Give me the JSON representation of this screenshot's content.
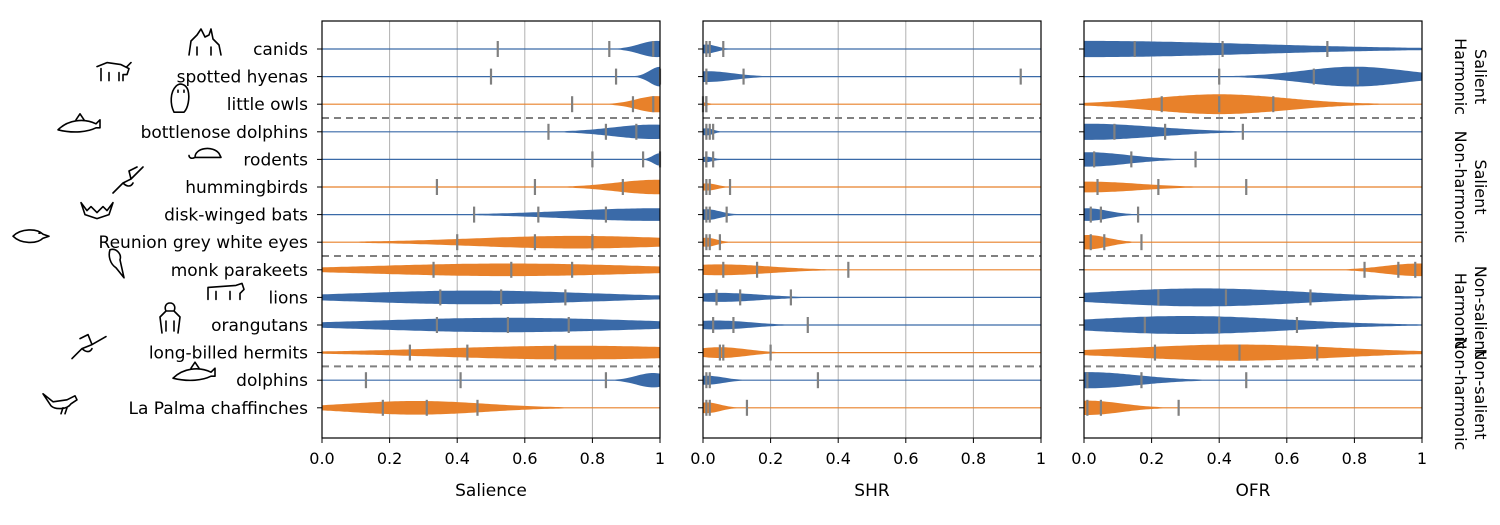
{
  "chart_data": {
    "type": "violin",
    "species": [
      "canids",
      "spotted hyenas",
      "little owls",
      "bottlenose dolphins",
      "rodents",
      "hummingbirds",
      "disk-winged bats",
      "Reunion grey white eyes",
      "monk parakeets",
      "lions",
      "orangutans",
      "long-billed hermits",
      "dolphins",
      "La Palma chaffinches"
    ],
    "species_icons": [
      "wolf-icon",
      "hyena-icon",
      "owl-icon",
      "dolphin-icon",
      "rodent-icon",
      "hummingbird-icon",
      "bat-icon",
      "white-eye-bird-icon",
      "parakeet-icon",
      "lion-icon",
      "orangutan-icon",
      "hermit-hummingbird-icon",
      "dolphin-icon",
      "chaffinch-icon"
    ],
    "colors": [
      "#3a6aa8",
      "#3a6aa8",
      "#e8812a",
      "#3a6aa8",
      "#3a6aa8",
      "#e8812a",
      "#3a6aa8",
      "#e8812a",
      "#e8812a",
      "#3a6aa8",
      "#3a6aa8",
      "#e8812a",
      "#3a6aa8",
      "#e8812a"
    ],
    "group_separators_after_index": [
      2,
      7,
      11
    ],
    "group_labels": [
      [
        "Salient",
        "Harmonic"
      ],
      [
        "Salient",
        "Non-harmonic"
      ],
      [
        "Non-salient",
        "Harmonic"
      ],
      [
        "Non-salient",
        "Non-harmonic"
      ]
    ],
    "group_spans": [
      [
        0,
        2
      ],
      [
        3,
        7
      ],
      [
        8,
        11
      ],
      [
        12,
        13
      ]
    ],
    "xticks": [
      "0.0",
      "0.2",
      "0.4",
      "0.6",
      "0.8",
      "1"
    ],
    "xlim": [
      0,
      1
    ],
    "grid": true,
    "panels": [
      {
        "xlabel": "Salience",
        "quartiles": [
          [
            0.52,
            0.85,
            0.98
          ],
          [
            0.5,
            0.87,
            1.0
          ],
          [
            0.74,
            0.92,
            0.98
          ],
          [
            0.67,
            0.84,
            0.93
          ],
          [
            0.8,
            0.95,
            1.0
          ],
          [
            0.34,
            0.63,
            0.89
          ],
          [
            0.45,
            0.64,
            0.84
          ],
          [
            0.4,
            0.63,
            0.8
          ],
          [
            0.33,
            0.56,
            0.74
          ],
          [
            0.35,
            0.53,
            0.72
          ],
          [
            0.34,
            0.55,
            0.73
          ],
          [
            0.26,
            0.43,
            0.69
          ],
          [
            0.13,
            0.41,
            0.84
          ],
          [
            0.18,
            0.31,
            0.46
          ]
        ],
        "peaks": [
          0.99,
          1.0,
          0.99,
          0.98,
          1.0,
          0.99,
          0.98,
          0.75,
          0.55,
          0.45,
          0.55,
          0.75,
          0.98,
          0.28
        ],
        "spreads": [
          0.05,
          0.03,
          0.06,
          0.12,
          0.02,
          0.12,
          0.25,
          0.3,
          0.4,
          0.35,
          0.4,
          0.4,
          0.05,
          0.2
        ],
        "max_half": [
          0.45,
          0.55,
          0.45,
          0.4,
          0.35,
          0.4,
          0.35,
          0.35,
          0.35,
          0.38,
          0.4,
          0.38,
          0.4,
          0.38
        ]
      },
      {
        "xlabel": "SHR",
        "quartiles": [
          [
            0.01,
            0.02,
            0.06
          ],
          [
            0.01,
            0.12,
            0.94
          ],
          [
            0.0,
            0.01,
            0.01
          ],
          [
            0.01,
            0.02,
            0.03
          ],
          [
            0.01,
            0.01,
            0.03
          ],
          [
            0.01,
            0.02,
            0.08
          ],
          [
            0.01,
            0.02,
            0.07
          ],
          [
            0.01,
            0.02,
            0.05
          ],
          [
            0.06,
            0.16,
            0.43
          ],
          [
            0.04,
            0.11,
            0.26
          ],
          [
            0.03,
            0.09,
            0.31
          ],
          [
            0.05,
            0.06,
            0.2
          ],
          [
            0.01,
            0.02,
            0.34
          ],
          [
            0.01,
            0.02,
            0.13
          ]
        ],
        "peaks": [
          0.01,
          0.01,
          0.005,
          0.01,
          0.01,
          0.01,
          0.01,
          0.01,
          0.05,
          0.05,
          0.04,
          0.05,
          0.01,
          0.01
        ],
        "spreads": [
          0.03,
          0.08,
          0.01,
          0.02,
          0.02,
          0.03,
          0.04,
          0.03,
          0.15,
          0.12,
          0.1,
          0.08,
          0.05,
          0.04
        ],
        "max_half": [
          0.25,
          0.3,
          0.1,
          0.2,
          0.15,
          0.2,
          0.3,
          0.25,
          0.3,
          0.25,
          0.25,
          0.3,
          0.25,
          0.3
        ]
      },
      {
        "xlabel": "OFR",
        "quartiles": [
          [
            0.15,
            0.41,
            0.72
          ],
          [
            0.4,
            0.68,
            0.81
          ],
          [
            0.23,
            0.4,
            0.56
          ],
          [
            0.09,
            0.24,
            0.47
          ],
          [
            0.03,
            0.14,
            0.33
          ],
          [
            0.04,
            0.22,
            0.48
          ],
          [
            0.02,
            0.05,
            0.16
          ],
          [
            0.02,
            0.06,
            0.17
          ],
          [
            0.83,
            0.93,
            0.98
          ],
          [
            0.22,
            0.42,
            0.67
          ],
          [
            0.18,
            0.4,
            0.63
          ],
          [
            0.21,
            0.46,
            0.69
          ],
          [
            0.01,
            0.17,
            0.48
          ],
          [
            0.01,
            0.05,
            0.28
          ]
        ],
        "peaks": [
          0.01,
          0.8,
          0.4,
          0.01,
          0.01,
          0.01,
          0.01,
          0.01,
          0.99,
          0.35,
          0.3,
          0.45,
          0.01,
          0.01
        ],
        "spreads": [
          0.5,
          0.15,
          0.2,
          0.2,
          0.12,
          0.15,
          0.06,
          0.06,
          0.1,
          0.3,
          0.3,
          0.3,
          0.15,
          0.1
        ],
        "max_half": [
          0.45,
          0.55,
          0.55,
          0.45,
          0.4,
          0.3,
          0.35,
          0.4,
          0.35,
          0.5,
          0.5,
          0.45,
          0.45,
          0.4
        ]
      }
    ]
  }
}
